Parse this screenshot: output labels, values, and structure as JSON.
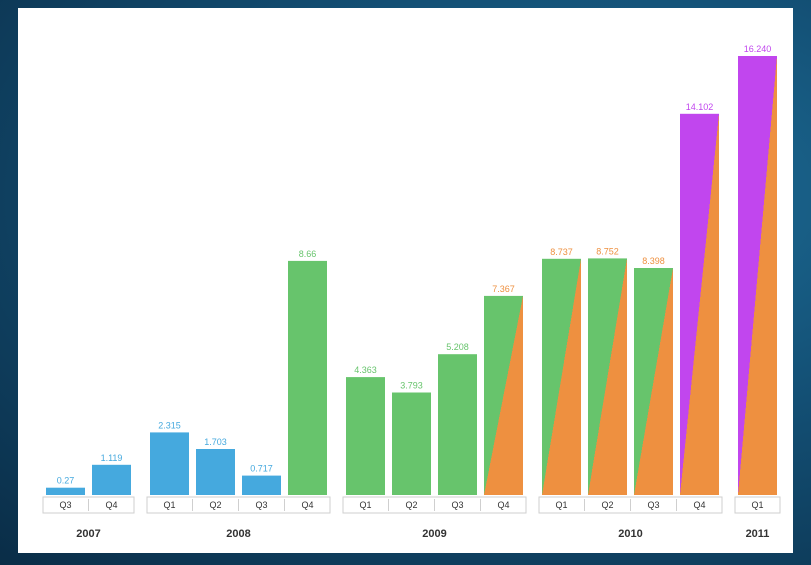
{
  "chart_data": {
    "type": "bar",
    "title": "",
    "xlabel": "",
    "ylabel": "",
    "ylim": [
      0,
      16.24
    ],
    "grid": false,
    "legend": "none",
    "colors": {
      "blue": "#45a9de",
      "green": "#67c46c",
      "orange": "#ee9040",
      "purple": "#c146ee"
    },
    "groups": [
      {
        "year": "2007",
        "bars": [
          {
            "quarter": "Q3",
            "value": 0.27,
            "label": "0.27",
            "fill": "blue"
          },
          {
            "quarter": "Q4",
            "value": 1.119,
            "label": "1.119",
            "fill": "blue"
          }
        ]
      },
      {
        "year": "2008",
        "bars": [
          {
            "quarter": "Q1",
            "value": 2.315,
            "label": "2.315",
            "fill": "blue"
          },
          {
            "quarter": "Q2",
            "value": 1.703,
            "label": "1.703",
            "fill": "blue"
          },
          {
            "quarter": "Q3",
            "value": 0.717,
            "label": "0.717",
            "fill": "blue"
          },
          {
            "quarter": "Q4",
            "value": 8.66,
            "label": "8.66",
            "fill": "green"
          }
        ]
      },
      {
        "year": "2009",
        "bars": [
          {
            "quarter": "Q1",
            "value": 4.363,
            "label": "4.363",
            "fill": "green"
          },
          {
            "quarter": "Q2",
            "value": 3.793,
            "label": "3.793",
            "fill": "green"
          },
          {
            "quarter": "Q3",
            "value": 5.208,
            "label": "5.208",
            "fill": "green"
          },
          {
            "quarter": "Q4",
            "value": 7.367,
            "label": "7.367",
            "fill": "green-orange"
          }
        ]
      },
      {
        "year": "2010",
        "bars": [
          {
            "quarter": "Q1",
            "value": 8.737,
            "label": "8.737",
            "fill": "green-orange"
          },
          {
            "quarter": "Q2",
            "value": 8.752,
            "label": "8.752",
            "fill": "green-orange"
          },
          {
            "quarter": "Q3",
            "value": 8.398,
            "label": "8.398",
            "fill": "green-orange"
          },
          {
            "quarter": "Q4",
            "value": 14.102,
            "label": "14.102",
            "fill": "purple-orange"
          }
        ]
      },
      {
        "year": "2011",
        "bars": [
          {
            "quarter": "Q1",
            "value": 16.24,
            "label": "16.240",
            "fill": "purple-orange"
          }
        ]
      }
    ]
  }
}
